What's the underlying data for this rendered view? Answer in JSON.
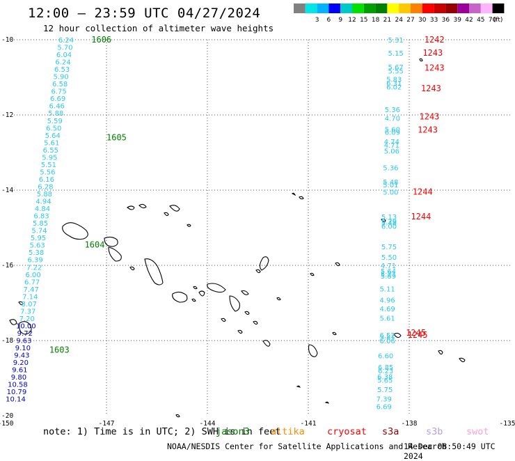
{
  "header": {
    "title": "12:00 — 23:59 UTC 04/27/2024",
    "subtitle": "12 hour collection of altimeter wave heights"
  },
  "colorbar": {
    "unit": "(ft)",
    "bins": [
      {
        "label": "",
        "color": "#808080"
      },
      {
        "label": "3",
        "color": "#00e5e5"
      },
      {
        "label": "6",
        "color": "#00b2ff"
      },
      {
        "label": "9",
        "color": "#0000ff"
      },
      {
        "label": "12",
        "color": "#00c8c8"
      },
      {
        "label": "15",
        "color": "#00e100"
      },
      {
        "label": "18",
        "color": "#00a000"
      },
      {
        "label": "21",
        "color": "#008000"
      },
      {
        "label": "24",
        "color": "#ffff00"
      },
      {
        "label": "27",
        "color": "#ffc800"
      },
      {
        "label": "30",
        "color": "#ff8000"
      },
      {
        "label": "33",
        "color": "#ff0000"
      },
      {
        "label": "36",
        "color": "#c80000"
      },
      {
        "label": "39",
        "color": "#960000"
      },
      {
        "label": "42",
        "color": "#9b009b"
      },
      {
        "label": "45",
        "color": "#c864c8"
      },
      {
        "label": "70",
        "color": "#ffb4ff"
      },
      {
        "label": "",
        "color": "#000000"
      }
    ]
  },
  "axes": {
    "lon_ticks": [
      "-150",
      "-147",
      "-144",
      "-141",
      "-138",
      "-135"
    ],
    "lat_ticks": [
      "-10",
      "-12",
      "-14",
      "-16",
      "-18",
      "-20"
    ]
  },
  "tracks": [
    {
      "id": "west",
      "start_lon": -148.2,
      "start_lat": -10.0,
      "end_lon": -149.7,
      "end_lat": -19.55,
      "values": [
        {
          "v": "6.24",
          "c": "#2ac8f0"
        },
        {
          "v": "5.70",
          "c": "#2ac8f0"
        },
        {
          "v": "6.04",
          "c": "#2ac8f0"
        },
        {
          "v": "6.24",
          "c": "#2ac8f0"
        },
        {
          "v": "6.53",
          "c": "#2ac8f0"
        },
        {
          "v": "5.90",
          "c": "#2ac8f0"
        },
        {
          "v": "6.58",
          "c": "#2ac8f0"
        },
        {
          "v": "6.75",
          "c": "#2ac8f0"
        },
        {
          "v": "6.69",
          "c": "#2ac8f0"
        },
        {
          "v": "6.46",
          "c": "#2ac8f0"
        },
        {
          "v": "5.88",
          "c": "#2ac8f0"
        },
        {
          "v": "5.59",
          "c": "#2ac8f0"
        },
        {
          "v": "6.50",
          "c": "#2ac8f0"
        },
        {
          "v": "5.64",
          "c": "#2ac8f0"
        },
        {
          "v": "5.61",
          "c": "#2ac8f0"
        },
        {
          "v": "6.55",
          "c": "#2ac8f0"
        },
        {
          "v": "5.95",
          "c": "#2ac8f0"
        },
        {
          "v": "5.51",
          "c": "#2ac8f0"
        },
        {
          "v": "5.56",
          "c": "#2ac8f0"
        },
        {
          "v": "6.16",
          "c": "#2ac8f0"
        },
        {
          "v": "6.28",
          "c": "#2ac8f0"
        },
        {
          "v": "5.88",
          "c": "#2ac8f0"
        },
        {
          "v": "4.94",
          "c": "#2ac8f0"
        },
        {
          "v": "4.84",
          "c": "#2ac8f0"
        },
        {
          "v": "6.83",
          "c": "#2ac8f0"
        },
        {
          "v": "5.85",
          "c": "#2ac8f0"
        },
        {
          "v": "5.74",
          "c": "#2ac8f0"
        },
        {
          "v": "5.95",
          "c": "#2ac8f0"
        },
        {
          "v": "5.63",
          "c": "#2ac8f0"
        },
        {
          "v": "5.38",
          "c": "#2ac8f0"
        },
        {
          "v": "6.39",
          "c": "#2ac8f0"
        },
        {
          "v": "7.22",
          "c": "#2ac8f0"
        },
        {
          "v": "6.00",
          "c": "#2ac8f0"
        },
        {
          "v": "6.77",
          "c": "#2ac8f0"
        },
        {
          "v": "7.47",
          "c": "#2ac8f0"
        },
        {
          "v": "7.14",
          "c": "#2ac8f0"
        },
        {
          "v": "8.07",
          "c": "#2ac8f0"
        },
        {
          "v": "7.37",
          "c": "#2ac8f0"
        },
        {
          "v": "7.20",
          "c": "#2ac8f0"
        },
        {
          "v": "10.00",
          "c": "#0000c8"
        },
        {
          "v": "9.72",
          "c": "#0000c8"
        },
        {
          "v": "9.63",
          "c": "#0000c8"
        },
        {
          "v": "9.10",
          "c": "#0000c8"
        },
        {
          "v": "9.43",
          "c": "#0000c8"
        },
        {
          "v": "9.20",
          "c": "#0000c8"
        },
        {
          "v": "9.61",
          "c": "#0000c8"
        },
        {
          "v": "9.80",
          "c": "#0000c8"
        },
        {
          "v": "10.58",
          "c": "#0000c8"
        },
        {
          "v": "10.79",
          "c": "#0000c8"
        },
        {
          "v": "10.14",
          "c": "#0000c8"
        }
      ],
      "time_labels": [
        {
          "t": "1606",
          "lat": -10.0,
          "lon": -147.45
        },
        {
          "t": "1605",
          "lat": -12.6,
          "lon": -147.0
        },
        {
          "t": "1604",
          "lat": -15.45,
          "lon": -147.65
        },
        {
          "t": "1603",
          "lat": -18.25,
          "lon": -148.7
        }
      ]
    },
    {
      "id": "east",
      "values": [
        {
          "v": "5.31",
          "lat": -10.0,
          "lon": -138.4
        },
        {
          "v": "5.15",
          "lat": -10.35,
          "lon": -138.4
        },
        {
          "v": "5.67",
          "lat": -10.72,
          "lon": -138.4
        },
        {
          "v": "5.55",
          "lat": -10.82,
          "lon": -138.4
        },
        {
          "v": "5.83",
          "lat": -11.05,
          "lon": -138.45
        },
        {
          "v": "6.31",
          "lat": -11.15,
          "lon": -138.45
        },
        {
          "v": "6.02",
          "lat": -11.25,
          "lon": -138.45
        },
        {
          "v": "5.36",
          "lat": -11.85,
          "lon": -138.5
        },
        {
          "v": "4.70",
          "lat": -12.08,
          "lon": -138.5
        },
        {
          "v": "5.60",
          "lat": -12.38,
          "lon": -138.5
        },
        {
          "v": "6.09",
          "lat": -12.45,
          "lon": -138.5
        },
        {
          "v": "4.74",
          "lat": -12.7,
          "lon": -138.52
        },
        {
          "v": "4.71",
          "lat": -12.8,
          "lon": -138.52
        },
        {
          "v": "5.06",
          "lat": -12.95,
          "lon": -138.52
        },
        {
          "v": "5.36",
          "lat": -13.4,
          "lon": -138.55
        },
        {
          "v": "5.48",
          "lat": -13.78,
          "lon": -138.55
        },
        {
          "v": "5.01",
          "lat": -13.85,
          "lon": -138.55
        },
        {
          "v": "5.00",
          "lat": -14.05,
          "lon": -138.55
        },
        {
          "v": "5.13",
          "lat": -14.7,
          "lon": -138.6
        },
        {
          "v": "5.29",
          "lat": -14.82,
          "lon": -138.6
        },
        {
          "v": "5.48",
          "lat": -14.86,
          "lon": -138.6
        },
        {
          "v": "6.00",
          "lat": -14.95,
          "lon": -138.6
        },
        {
          "v": "5.75",
          "lat": -15.5,
          "lon": -138.6
        },
        {
          "v": "5.50",
          "lat": -15.78,
          "lon": -138.6
        },
        {
          "v": "4.71",
          "lat": -16.0,
          "lon": -138.62
        },
        {
          "v": "5.64",
          "lat": -16.15,
          "lon": -138.62
        },
        {
          "v": "5.21",
          "lat": -16.22,
          "lon": -138.62
        },
        {
          "v": "5.89",
          "lat": -16.28,
          "lon": -138.62
        },
        {
          "v": "5.11",
          "lat": -16.62,
          "lon": -138.65
        },
        {
          "v": "4.96",
          "lat": -16.92,
          "lon": -138.65
        },
        {
          "v": "4.69",
          "lat": -17.15,
          "lon": -138.65
        },
        {
          "v": "5.61",
          "lat": -17.4,
          "lon": -138.65
        },
        {
          "v": "6.52",
          "lat": -17.85,
          "lon": -138.65
        },
        {
          "v": "5.81",
          "lat": -17.9,
          "lon": -138.65
        },
        {
          "v": "6.06",
          "lat": -18.0,
          "lon": -138.65
        },
        {
          "v": "6.60",
          "lat": -18.4,
          "lon": -138.7
        },
        {
          "v": "6.85",
          "lat": -18.7,
          "lon": -138.7
        },
        {
          "v": "6.23",
          "lat": -18.8,
          "lon": -138.7
        },
        {
          "v": "6.38",
          "lat": -18.95,
          "lon": -138.72
        },
        {
          "v": "5.65",
          "lat": -19.05,
          "lon": -138.72
        },
        {
          "v": "5.75",
          "lat": -19.3,
          "lon": -138.72
        },
        {
          "v": "7.39",
          "lat": -19.55,
          "lon": -138.75
        },
        {
          "v": "6.69",
          "lat": -19.75,
          "lon": -138.75
        }
      ],
      "time_labels": [
        {
          "t": "1242",
          "lat": -10.0,
          "lon": -137.55
        },
        {
          "t": "1243",
          "lat": -10.35,
          "lon": -137.6
        },
        {
          "t": "1243",
          "lat": -10.75,
          "lon": -137.55
        },
        {
          "t": "1243",
          "lat": -11.3,
          "lon": -137.65
        },
        {
          "t": "1243",
          "lat": -12.05,
          "lon": -137.7
        },
        {
          "t": "1243",
          "lat": -12.4,
          "lon": -137.75
        },
        {
          "t": "1244",
          "lat": -14.05,
          "lon": -137.9
        },
        {
          "t": "1244",
          "lat": -14.7,
          "lon": -137.95
        },
        {
          "t": "1245",
          "lat": -17.8,
          "lon": -138.1
        },
        {
          "t": "1245",
          "lat": -17.85,
          "lon": -138.05
        }
      ]
    }
  ],
  "footer": {
    "note": "note: 1) Time is in UTC; 2) SWH is in feet",
    "satellites": [
      {
        "name": "jason3",
        "color": "#008000"
      },
      {
        "name": "altika",
        "color": "#ff8c00"
      },
      {
        "name": "cryosat",
        "color": "#ff0000"
      },
      {
        "name": "s3a",
        "color": "#8b0000"
      },
      {
        "name": "s3b",
        "color": "#b4a0e6"
      },
      {
        "name": "swot",
        "color": "#ffa0d2"
      }
    ],
    "credit": "NOAA/NESDIS Center for Satellite Applications and Research",
    "generated": "14 Dec 08:50:49 UTC 2024"
  }
}
